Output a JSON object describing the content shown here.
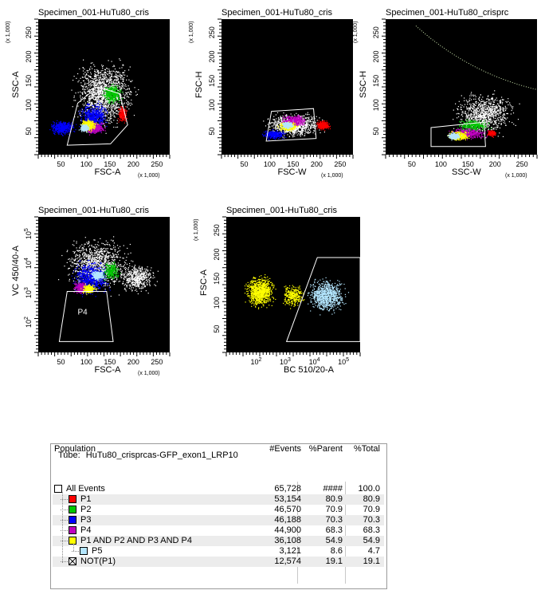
{
  "colors": {
    "P1": "#ff0000",
    "P2": "#00c800",
    "P3": "#0000ff",
    "P4": "#c000c0",
    "AND": "#ffff00",
    "P5": "#b4e6ff",
    "NOT": "#ffffff",
    "bg": "#000000"
  },
  "plots": [
    {
      "title": "Specimen_001-HuTu80_cris",
      "xlabel": "FSC-A",
      "ylabel": "SSC-A",
      "xmult": "(x 1,000)",
      "ymult": "(x 1,000)",
      "xticks": [
        "50",
        "100",
        "150",
        "200",
        "250"
      ],
      "yticks": [
        "50",
        "100",
        "150",
        "200",
        "250"
      ],
      "gates": [
        "P1"
      ]
    },
    {
      "title": "Specimen_001-HuTu80_cris",
      "xlabel": "FSC-W",
      "ylabel": "FSC-H",
      "xmult": "(x 1,000)",
      "ymult": "(x 1,000)",
      "xticks": [
        "50",
        "100",
        "150",
        "200",
        "250"
      ],
      "yticks": [
        "50",
        "100",
        "150",
        "200",
        "250"
      ],
      "gates": []
    },
    {
      "title": "Specimen_001-HuTu80_crisprc",
      "xlabel": "SSC-W",
      "ylabel": "SSC-H",
      "xmult": "(x 1,000)",
      "ymult": "(x 1,000)",
      "xticks": [
        "50",
        "100",
        "150",
        "200",
        "250"
      ],
      "yticks": [
        "50",
        "100",
        "150",
        "200",
        "250"
      ],
      "gates": []
    },
    {
      "title": "Specimen_001-HuTu80_cris",
      "xlabel": "FSC-A",
      "ylabel": "VC 450/40-A",
      "xmult": "(x 1,000)",
      "ymult": "",
      "xticks": [
        "50",
        "100",
        "150",
        "200",
        "250"
      ],
      "yticks": [
        "10",
        "10",
        "10",
        "10"
      ],
      "yexp": [
        "2",
        "3",
        "4",
        "5"
      ],
      "gates": [
        "P4"
      ]
    },
    {
      "title": "Specimen_001-HuTu80_cris",
      "xlabel": "BC 510/20-A",
      "ylabel": "FSC-A",
      "xmult": "",
      "ymult": "(x 1,000)",
      "xticks": [
        "10",
        "10",
        "10",
        "10"
      ],
      "xexp": [
        "2",
        "3",
        "4",
        "5"
      ],
      "yticks": [
        "50",
        "100",
        "150",
        "200",
        "250"
      ],
      "gates": []
    }
  ],
  "stats": {
    "tube_label": "Tube:",
    "tube_name": "HuTu80_crisprcas-GFP_exon1_LRP10",
    "headers": {
      "population": "Population",
      "events": "#Events",
      "parent": "%Parent",
      "total": "%Total"
    },
    "rows": [
      {
        "name": "All Events",
        "events": "65,728",
        "parent": "####",
        "total": "100.0",
        "color": "white",
        "indent": 0
      },
      {
        "name": "P1",
        "events": "53,154",
        "parent": "80.9",
        "total": "80.9",
        "color": "P1",
        "indent": 1
      },
      {
        "name": "P2",
        "events": "46,570",
        "parent": "70.9",
        "total": "70.9",
        "color": "P2",
        "indent": 1
      },
      {
        "name": "P3",
        "events": "46,188",
        "parent": "70.3",
        "total": "70.3",
        "color": "P3",
        "indent": 1
      },
      {
        "name": "P4",
        "events": "44,900",
        "parent": "68.3",
        "total": "68.3",
        "color": "P4",
        "indent": 1
      },
      {
        "name": "P1 AND P2 AND P3 AND P4",
        "events": "36,108",
        "parent": "54.9",
        "total": "54.9",
        "color": "AND",
        "indent": 1
      },
      {
        "name": "P5",
        "events": "3,121",
        "parent": "8.6",
        "total": "4.7",
        "color": "P5",
        "indent": 2
      },
      {
        "name": "NOT(P1)",
        "events": "12,574",
        "parent": "19.1",
        "total": "19.1",
        "color": "NOT",
        "indent": 1
      }
    ]
  }
}
